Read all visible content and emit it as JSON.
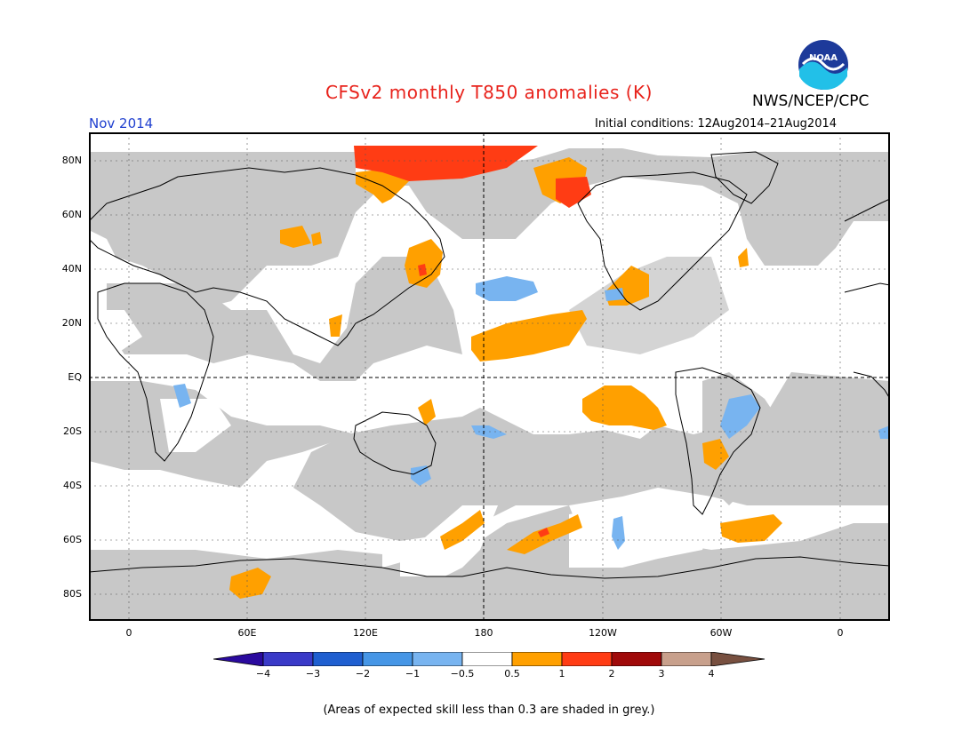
{
  "header": {
    "title": "CFSv2 monthly T850 anomalies (K)",
    "organization": "NWS/NCEP/CPC",
    "valid_month": "Nov 2014",
    "initial_conditions": "Initial conditions: 12Aug2014–21Aug2014",
    "logo_text": "NOAA"
  },
  "map": {
    "projection": "cylindrical equidistant, 0–360E centered on 180",
    "lat_labels": [
      "80N",
      "60N",
      "40N",
      "20N",
      "EQ",
      "20S",
      "40S",
      "60S",
      "80S"
    ],
    "lon_labels": [
      "0",
      "60E",
      "120E",
      "180",
      "120W",
      "60W",
      "0"
    ],
    "colors": {
      "low_skill_grey": "#c8c8c8",
      "neutral": "#ffffff",
      "anom_0_5_to_1": "#ffa000",
      "anom_1_to_2": "#ff3c14",
      "anom_m1_to_m0_5": "#78b4f0",
      "anom_m2_to_m1": "#4696e6"
    }
  },
  "colorbar": {
    "labels": [
      "−4",
      "−3",
      "−2",
      "−1",
      "−0.5",
      "0.5",
      "1",
      "2",
      "3",
      "4"
    ],
    "colors": [
      "#2a0a9e",
      "#3a3ac8",
      "#1f5fd0",
      "#4696e6",
      "#78b4f0",
      "#ffffff",
      "#ffa000",
      "#ff3c14",
      "#a00a0a",
      "#c8a08c",
      "#785040"
    ]
  },
  "footer": {
    "note": "(Areas of expected skill less than 0.3 are shaded in grey.)"
  }
}
